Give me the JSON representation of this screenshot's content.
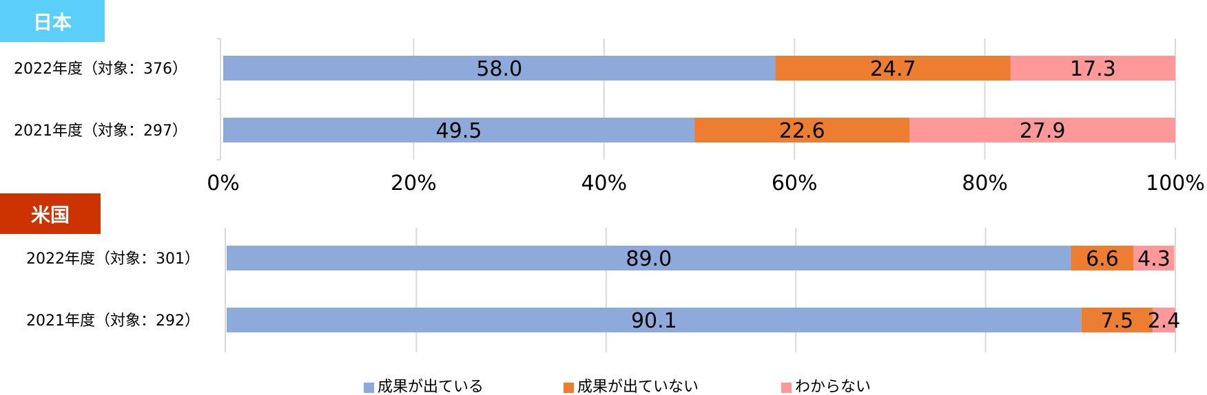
{
  "chart_data": [
    {
      "type": "bar",
      "orientation": "horizontal",
      "stacked": true,
      "title": "日本",
      "title_color": "#5BCEFA",
      "categories": [
        "2022年度（対象：376）",
        "2021年度（対象：297）"
      ],
      "series": [
        {
          "name": "成果が出ている",
          "color": "#8EAADB",
          "values": [
            58.0,
            49.5
          ]
        },
        {
          "name": "成果が出ていない",
          "color": "#ED7D31",
          "values": [
            24.7,
            22.6
          ]
        },
        {
          "name": "わからない",
          "color": "#FF9999",
          "values": [
            17.3,
            27.9
          ]
        }
      ],
      "xlim": [
        0,
        100
      ],
      "x_ticks": [
        "0%",
        "20%",
        "40%",
        "60%",
        "80%",
        "100%"
      ],
      "grid": true
    },
    {
      "type": "bar",
      "orientation": "horizontal",
      "stacked": true,
      "title": "米国",
      "title_color": "#CC3300",
      "categories": [
        "2022年度（対象：301）",
        "2021年度（対象：292）"
      ],
      "series": [
        {
          "name": "成果が出ている",
          "color": "#8EAADB",
          "values": [
            89.0,
            90.1
          ]
        },
        {
          "name": "成果が出ていない",
          "color": "#ED7D31",
          "values": [
            6.6,
            7.5
          ]
        },
        {
          "name": "わからない",
          "color": "#FF9999",
          "values": [
            4.3,
            2.4
          ]
        }
      ],
      "xlim": [
        0,
        100
      ],
      "grid": true
    }
  ],
  "legend": {
    "position": "bottom",
    "items": [
      {
        "label": "成果が出ている",
        "color": "#8EAADB"
      },
      {
        "label": "成果が出ていない",
        "color": "#ED7D31"
      },
      {
        "label": "わからない",
        "color": "#FF9999"
      }
    ]
  }
}
